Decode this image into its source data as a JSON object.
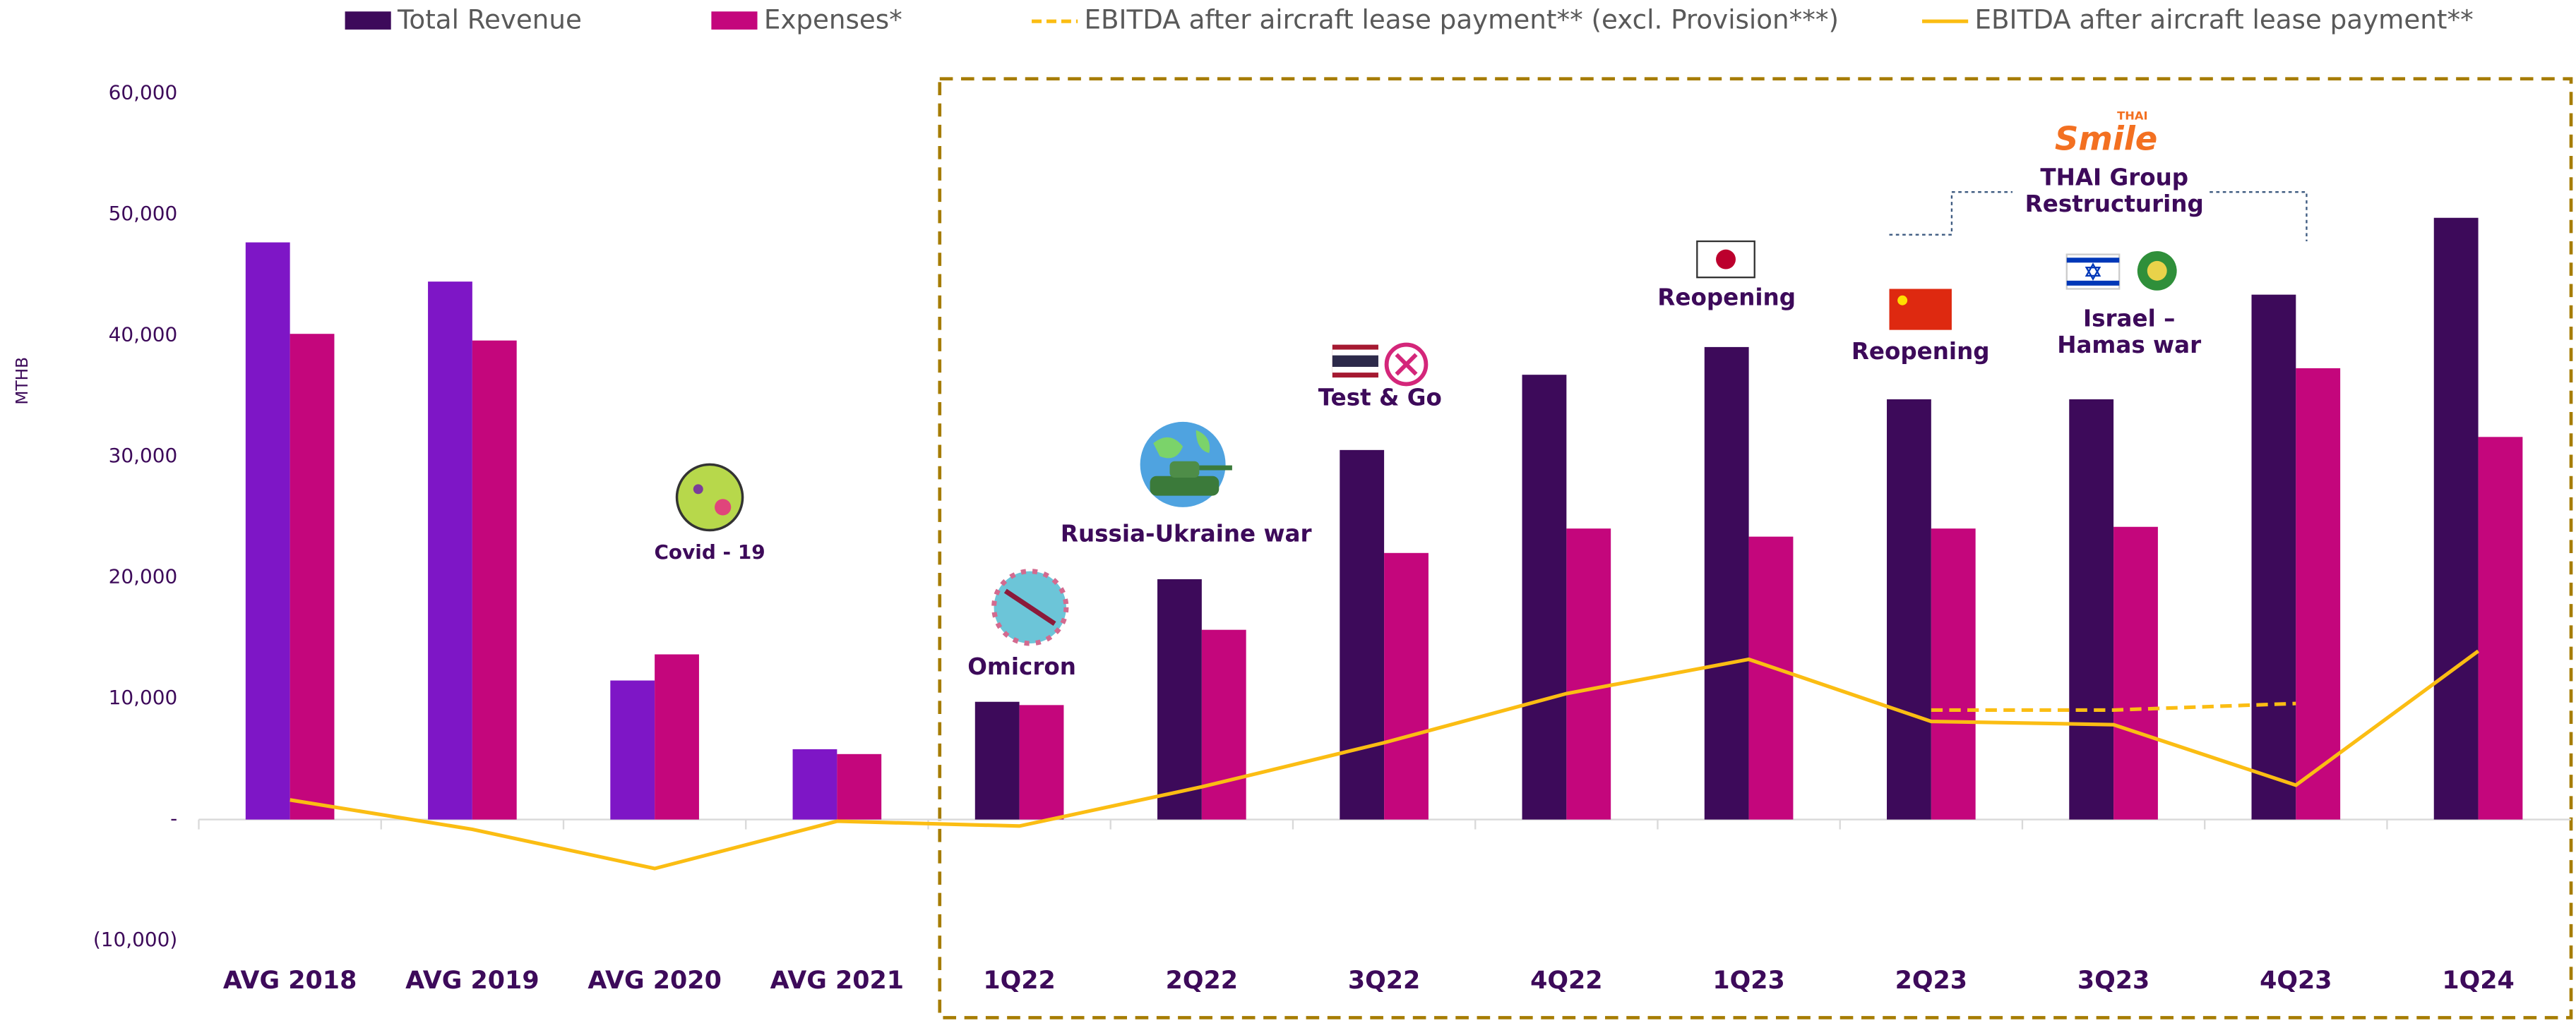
{
  "chart_data": {
    "type": "bar",
    "y_label": "MTHB",
    "categories": [
      "AVG 2018",
      "AVG 2019",
      "AVG 2020",
      "AVG 2021",
      "1Q22",
      "2Q22",
      "3Q22",
      "4Q22",
      "1Q23",
      "2Q23",
      "3Q23",
      "4Q23",
      "1Q24"
    ],
    "series": [
      {
        "name": "Total Revenue",
        "type": "bar",
        "color": "#3d0a5a",
        "bar_colors": [
          "#7e16c6",
          "#7e16c6",
          "#7e16c6",
          "#7e16c6",
          "#3d0a5a",
          "#3d0a5a",
          "#3d0a5a",
          "#3d0a5a",
          "#3d0a5a",
          "#3d0a5a",
          "#3d0a5a",
          "#3d0a5a",
          "#3d0a5a"
        ],
        "values": [
          47700,
          44460,
          11490,
          5810,
          9730,
          19860,
          30540,
          36760,
          39050,
          34730,
          34730,
          43380,
          49730
        ]
      },
      {
        "name": "Expenses*",
        "type": "bar",
        "color": "#c4067c",
        "values": [
          40140,
          39590,
          13650,
          5410,
          9460,
          15680,
          22030,
          24050,
          23380,
          24050,
          24190,
          37300,
          31620
        ]
      },
      {
        "name": "EBITDA after aircraft lease payment** (excl. Provision***)",
        "type": "line",
        "dashed": true,
        "color": "#fbbd13",
        "values": [
          null,
          null,
          null,
          null,
          null,
          null,
          null,
          null,
          null,
          9050,
          9050,
          9590,
          null
        ]
      },
      {
        "name": "EBITDA after aircraft lease payment**",
        "type": "line",
        "dashed": false,
        "color": "#fbbd13",
        "values": [
          1620,
          -810,
          -4050,
          -140,
          -540,
          2700,
          6350,
          10410,
          13240,
          8110,
          7840,
          2840,
          13920
        ]
      }
    ],
    "ylim": [
      -10000,
      60000
    ],
    "yticks": [
      {
        "value": -10000,
        "label": "(10,000)"
      },
      {
        "value": 0,
        "label": "-"
      },
      {
        "value": 10000,
        "label": "10,000"
      },
      {
        "value": 20000,
        "label": "20,000"
      },
      {
        "value": 30000,
        "label": "30,000"
      },
      {
        "value": 40000,
        "label": "40,000"
      },
      {
        "value": 50000,
        "label": "50,000"
      },
      {
        "value": 60000,
        "label": "60,000"
      }
    ],
    "annotations": [
      {
        "lines": [
          "Covid - 19"
        ]
      },
      {
        "lines": [
          "Omicron"
        ]
      },
      {
        "lines": [
          "Russia-Ukraine  war"
        ]
      },
      {
        "lines": [
          "Test & Go"
        ]
      },
      {
        "lines": [
          "Reopening"
        ]
      },
      {
        "lines": [
          "Reopening"
        ]
      },
      {
        "lines": [
          "Israel –",
          "Hamas war"
        ]
      },
      {
        "lines": [
          "THAI Group",
          "Restructuring"
        ]
      },
      {
        "lines": [
          "THAI"
        ]
      },
      {
        "lines": [
          "Smile"
        ]
      }
    ]
  }
}
